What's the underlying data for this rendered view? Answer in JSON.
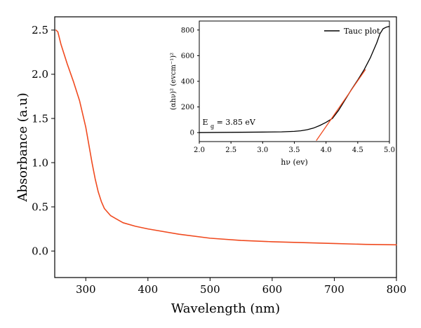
{
  "chart_data": [
    {
      "type": "line",
      "title": "",
      "xlabel": "Wavelength (nm)",
      "ylabel": "Absorbance (a.u)",
      "xlim": [
        250,
        800
      ],
      "ylim": [
        -0.3,
        2.65
      ],
      "xticks": [
        300,
        400,
        500,
        600,
        700,
        800
      ],
      "yticks": [
        0.0,
        0.5,
        1.0,
        1.5,
        2.0,
        2.5
      ],
      "ytick_labels": [
        "0.0",
        "0.5",
        "1.0",
        "1.5",
        "2.0",
        "2.5"
      ],
      "grid": false,
      "series": [
        {
          "color": "#f04a1f",
          "x": [
            252,
            255,
            260,
            270,
            280,
            290,
            300,
            305,
            310,
            315,
            320,
            325,
            330,
            340,
            350,
            360,
            380,
            400,
            450,
            500,
            550,
            600,
            650,
            700,
            750,
            800
          ],
          "y": [
            2.5,
            2.48,
            2.34,
            2.12,
            1.92,
            1.7,
            1.4,
            1.2,
            1.0,
            0.82,
            0.67,
            0.56,
            0.48,
            0.4,
            0.36,
            0.32,
            0.28,
            0.25,
            0.19,
            0.145,
            0.12,
            0.105,
            0.095,
            0.085,
            0.075,
            0.07
          ]
        }
      ]
    },
    {
      "type": "line",
      "title": "",
      "xlabel": "hν (ev)",
      "ylabel": "(αhν)² (evcm⁻¹)²",
      "xlim": [
        2.0,
        5.0
      ],
      "ylim": [
        -70,
        870
      ],
      "xticks": [
        2.0,
        2.5,
        3.0,
        3.5,
        4.0,
        4.5,
        5.0
      ],
      "xtick_labels": [
        "2.0",
        "2.5",
        "3.0",
        "3.5",
        "4.0",
        "4.5",
        "5.0"
      ],
      "yticks": [
        0,
        200,
        400,
        600,
        800
      ],
      "grid": false,
      "legend": {
        "position": "top-right",
        "entries": [
          "Tauc plot"
        ]
      },
      "series": [
        {
          "name": "Tauc plot",
          "color": "#000000",
          "x": [
            2.0,
            2.5,
            3.0,
            3.3,
            3.5,
            3.6,
            3.7,
            3.8,
            3.9,
            4.0,
            4.1,
            4.2,
            4.3,
            4.4,
            4.5,
            4.6,
            4.7,
            4.8,
            4.85,
            4.9,
            4.95,
            5.0
          ],
          "y": [
            0,
            2,
            4,
            6,
            10,
            14,
            22,
            35,
            55,
            80,
            110,
            175,
            255,
            335,
            410,
            490,
            585,
            700,
            770,
            810,
            822,
            828
          ]
        },
        {
          "color": "#f04a1f",
          "x": [
            3.85,
            4.62
          ],
          "y": [
            -60,
            490
          ]
        }
      ],
      "annotations": [
        {
          "text_main": "E",
          "text_sub": "g",
          "text_rest": " = 3.85 eV",
          "color": "#f04a1f",
          "x": 2.05,
          "y": 60
        }
      ]
    }
  ]
}
